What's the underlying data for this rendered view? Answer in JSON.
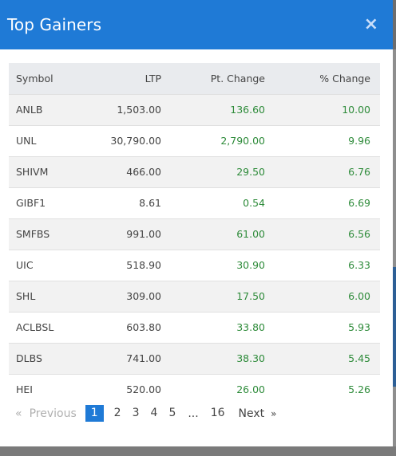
{
  "modal": {
    "title": "Top Gainers",
    "close_icon": "×"
  },
  "table": {
    "headers": {
      "symbol": "Symbol",
      "ltp": "LTP",
      "pt_change": "Pt. Change",
      "pct_change": "% Change"
    },
    "rows": [
      {
        "symbol": "ANLB",
        "ltp": "1,503.00",
        "pt_change": "136.60",
        "pct_change": "10.00"
      },
      {
        "symbol": "UNL",
        "ltp": "30,790.00",
        "pt_change": "2,790.00",
        "pct_change": "9.96"
      },
      {
        "symbol": "SHIVM",
        "ltp": "466.00",
        "pt_change": "29.50",
        "pct_change": "6.76"
      },
      {
        "symbol": "GIBF1",
        "ltp": "8.61",
        "pt_change": "0.54",
        "pct_change": "6.69"
      },
      {
        "symbol": "SMFBS",
        "ltp": "991.00",
        "pt_change": "61.00",
        "pct_change": "6.56"
      },
      {
        "symbol": "UIC",
        "ltp": "518.90",
        "pt_change": "30.90",
        "pct_change": "6.33"
      },
      {
        "symbol": "SHL",
        "ltp": "309.00",
        "pt_change": "17.50",
        "pct_change": "6.00"
      },
      {
        "symbol": "ACLBSL",
        "ltp": "603.80",
        "pt_change": "33.80",
        "pct_change": "5.93"
      },
      {
        "symbol": "DLBS",
        "ltp": "741.00",
        "pt_change": "38.30",
        "pct_change": "5.45"
      },
      {
        "symbol": "HEI",
        "ltp": "520.00",
        "pt_change": "26.00",
        "pct_change": "5.26"
      }
    ]
  },
  "pagination": {
    "prev_arrow": "«",
    "prev_label": "Previous",
    "pages": [
      "1",
      "2",
      "3",
      "4",
      "5"
    ],
    "ellipsis": "...",
    "last_page": "16",
    "next_label": "Next",
    "next_arrow": "»",
    "active_page": "1"
  },
  "colors": {
    "header_bg": "#1f7ad6",
    "gain_green": "#2e8b3a",
    "active_page_bg": "#1f7ad6"
  }
}
